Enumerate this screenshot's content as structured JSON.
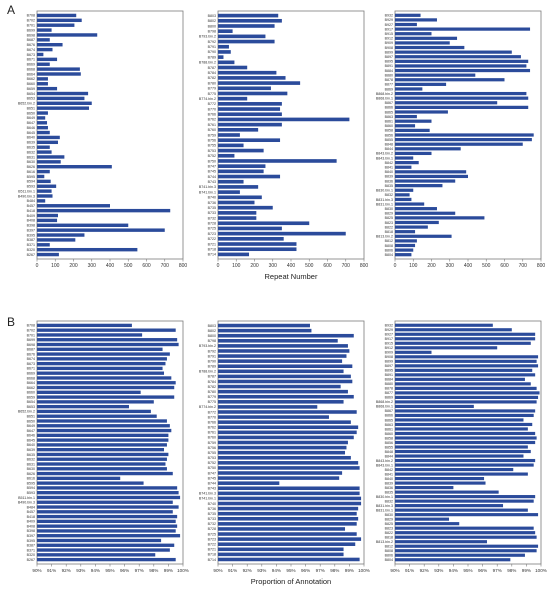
{
  "figure": {
    "panel_labels": [
      "A",
      "B"
    ],
    "bar_color": "#2b4b9b",
    "frame_color": "#7a7a7a"
  },
  "chart_data": [
    {
      "type": "bar",
      "orientation": "horizontal",
      "panel": "A",
      "column": 1,
      "xlabel": "",
      "xlim": [
        0,
        800
      ],
      "xticks": [
        0,
        100,
        200,
        300,
        400,
        500,
        600,
        700,
        800
      ],
      "categories": [
        "B708",
        "B702",
        "B701",
        "B699",
        "B698",
        "B687",
        "B676",
        "B674",
        "B673",
        "B671",
        "B669",
        "B668",
        "B664",
        "B662",
        "B660",
        "B659",
        "B654",
        "B653",
        "B652.bin.2",
        "B651",
        "B650",
        "B649",
        "B647",
        "B646",
        "B645",
        "B640",
        "B639",
        "B635",
        "B632",
        "B631",
        "B630",
        "B626",
        "B616",
        "B595",
        "B594",
        "B593",
        "B511.bin.1",
        "B490.bin.3",
        "B484",
        "B457",
        "B418",
        "B409",
        "B408",
        "B398",
        "B397",
        "B395",
        "B387",
        "B371",
        "B320",
        "B267"
      ],
      "values": [
        215,
        245,
        205,
        80,
        330,
        70,
        140,
        85,
        35,
        110,
        70,
        235,
        240,
        60,
        60,
        110,
        280,
        260,
        300,
        285,
        60,
        45,
        55,
        60,
        70,
        125,
        115,
        70,
        80,
        150,
        130,
        410,
        70,
        40,
        75,
        105,
        80,
        85,
        45,
        400,
        730,
        115,
        110,
        500,
        700,
        260,
        210,
        70,
        550,
        120
      ]
    },
    {
      "type": "bar",
      "orientation": "horizontal",
      "panel": "A",
      "column": 2,
      "xlabel": "Repeat Number",
      "xlim": [
        0,
        800
      ],
      "xticks": [
        0,
        100,
        200,
        300,
        400,
        500,
        600,
        700,
        800
      ],
      "categories": [
        "B803",
        "B802",
        "B800",
        "B798",
        "B793.bin.2",
        "B792",
        "B791",
        "B790",
        "B789",
        "B788.bin.2",
        "B787",
        "B784",
        "B782",
        "B780",
        "B779",
        "B775",
        "B774.bin.2",
        "B772",
        "B770",
        "B766",
        "B762",
        "B761",
        "B760",
        "B759",
        "B756",
        "B755",
        "B753",
        "B752",
        "B750",
        "B747",
        "B745",
        "B744",
        "B743",
        "B741.bin.3",
        "B741.bin.1",
        "B740",
        "B736",
        "B735",
        "B733",
        "B732",
        "B728",
        "B725",
        "B723",
        "B722",
        "B721",
        "B718",
        "B714"
      ],
      "values": [
        330,
        350,
        310,
        80,
        260,
        310,
        60,
        70,
        30,
        90,
        160,
        320,
        370,
        450,
        290,
        380,
        160,
        350,
        340,
        350,
        720,
        350,
        220,
        120,
        340,
        140,
        250,
        90,
        650,
        260,
        250,
        340,
        140,
        220,
        120,
        240,
        200,
        300,
        210,
        210,
        500,
        350,
        700,
        360,
        430,
        430,
        170
      ]
    },
    {
      "type": "bar",
      "orientation": "horizontal",
      "panel": "A",
      "column": 3,
      "xlabel": "",
      "xlim": [
        0,
        800
      ],
      "xticks": [
        0,
        100,
        200,
        300,
        400,
        500,
        600,
        700,
        800
      ],
      "categories": [
        "B932",
        "B929",
        "B927",
        "B917",
        "B915",
        "B912",
        "B909",
        "B908",
        "B899",
        "B897",
        "B895",
        "B891",
        "B884",
        "B880",
        "B878",
        "B877",
        "B869",
        "B868.bin.2",
        "B868.bin.1",
        "B867",
        "B866",
        "B865",
        "B863",
        "B861",
        "B860",
        "B858",
        "B856",
        "B855",
        "B848",
        "B844",
        "B843.bin.2",
        "B843.bin.1",
        "B842",
        "B841",
        "B840",
        "B839",
        "B836",
        "B835",
        "B830.bin.1",
        "B832",
        "B831.bin.3",
        "B831.bin.1",
        "B830",
        "B829",
        "B825",
        "B823",
        "B822",
        "B818",
        "B813.bin.2",
        "B812",
        "B808",
        "B806",
        "B804"
      ],
      "values": [
        140,
        230,
        120,
        740,
        200,
        340,
        300,
        380,
        640,
        690,
        730,
        720,
        740,
        440,
        600,
        280,
        150,
        720,
        730,
        560,
        730,
        290,
        120,
        200,
        110,
        190,
        760,
        750,
        700,
        360,
        200,
        100,
        130,
        90,
        390,
        400,
        330,
        260,
        100,
        80,
        90,
        160,
        230,
        330,
        490,
        240,
        180,
        110,
        310,
        120,
        110,
        100,
        90
      ]
    },
    {
      "type": "bar",
      "orientation": "horizontal",
      "panel": "B",
      "column": 1,
      "xlabel": "",
      "xlim": [
        90,
        100
      ],
      "xticks": [
        "90%",
        "91%",
        "92%",
        "93%",
        "94%",
        "95%",
        "96%",
        "97%",
        "98%",
        "99%",
        "100%"
      ],
      "categories": [
        "B708",
        "B702",
        "B701",
        "B699",
        "B698",
        "B687",
        "B676",
        "B674",
        "B673",
        "B671",
        "B669",
        "B668",
        "B664",
        "B662",
        "B660",
        "B659",
        "B654",
        "B653",
        "B652.bin.2",
        "B651",
        "B650",
        "B649",
        "B647",
        "B646",
        "B645",
        "B640",
        "B639",
        "B635",
        "B632",
        "B631",
        "B630",
        "B626",
        "B616",
        "B595",
        "B594",
        "B593",
        "B511.bin.1",
        "B490.bin.3",
        "B484",
        "B457",
        "B418",
        "B409",
        "B408",
        "B398",
        "B397",
        "B395",
        "B387",
        "B371",
        "B320",
        "B267"
      ],
      "values": [
        96.5,
        99.5,
        97.2,
        99.6,
        99.7,
        98.6,
        99.1,
        98.9,
        98.8,
        98.6,
        98.7,
        99.2,
        99.5,
        99.4,
        97.1,
        99.4,
        98.0,
        96.3,
        97.8,
        98.2,
        98.9,
        99.1,
        99.2,
        99.0,
        99.0,
        98.9,
        98.7,
        99.0,
        98.9,
        98.8,
        98.9,
        99.3,
        95.7,
        97.3,
        99.6,
        99.7,
        99.8,
        99.3,
        99.7,
        99.3,
        99.6,
        99.5,
        99.6,
        99.5,
        99.8,
        98.5,
        99.4,
        99.1,
        98.1,
        99.5
      ]
    },
    {
      "type": "bar",
      "orientation": "horizontal",
      "panel": "B",
      "column": 2,
      "xlabel": "Proportion of Annotation",
      "xlim": [
        90,
        100
      ],
      "xticks": [
        "90%",
        "91%",
        "92%",
        "93%",
        "94%",
        "95%",
        "96%",
        "97%",
        "98%",
        "99%",
        "100%"
      ],
      "categories": [
        "B803",
        "B802",
        "B800",
        "B798",
        "B793.bin.2",
        "B792",
        "B791",
        "B790",
        "B789",
        "B788.bin.2",
        "B787",
        "B784",
        "B782",
        "B780",
        "B779",
        "B775",
        "B774.bin.2",
        "B772",
        "B770",
        "B766",
        "B762",
        "B761",
        "B760",
        "B759",
        "B756",
        "B755",
        "B753",
        "B752",
        "B750",
        "B747",
        "B745",
        "B744",
        "B743",
        "B741.bin.3",
        "B741.bin.1",
        "B740",
        "B736",
        "B735",
        "B733",
        "B732",
        "B728",
        "B725",
        "B723",
        "B722",
        "B721",
        "B718",
        "B714"
      ],
      "values": [
        96.3,
        96.4,
        99.3,
        98.2,
        98.9,
        99.0,
        98.8,
        98.5,
        99.2,
        98.6,
        99.1,
        99.2,
        98.4,
        98.9,
        99.3,
        98.6,
        96.8,
        99.5,
        97.6,
        99.1,
        99.6,
        99.5,
        99.3,
        98.9,
        98.8,
        98.7,
        99.1,
        99.6,
        99.7,
        98.5,
        98.3,
        94.2,
        99.7,
        99.7,
        99.8,
        99.8,
        99.6,
        99.5,
        99.6,
        99.5,
        98.7,
        99.5,
        99.8,
        99.4,
        98.6,
        98.6,
        99.7
      ]
    },
    {
      "type": "bar",
      "orientation": "horizontal",
      "panel": "B",
      "column": 3,
      "xlabel": "",
      "xlim": [
        90,
        100
      ],
      "xticks": [
        "90%",
        "91%",
        "92%",
        "93%",
        "94%",
        "95%",
        "96%",
        "97%",
        "98%",
        "99%",
        "100%"
      ],
      "categories": [
        "B932",
        "B929",
        "B927",
        "B917",
        "B915",
        "B912",
        "B909",
        "B908",
        "B899",
        "B897",
        "B895",
        "B891",
        "B884",
        "B880",
        "B878",
        "B877",
        "B869",
        "B868.bin.2",
        "B868.bin.1",
        "B867",
        "B866",
        "B865",
        "B863",
        "B861",
        "B860",
        "B858",
        "B856",
        "B855",
        "B848",
        "B844",
        "B843.bin.2",
        "B843.bin.1",
        "B842",
        "B841",
        "B840",
        "B839",
        "B836",
        "B835",
        "B830.bin.1",
        "B832",
        "B831.bin.3",
        "B831.bin.1",
        "B830",
        "B829",
        "B825",
        "B823",
        "B822",
        "B818",
        "B813.bin.2",
        "B812",
        "B808",
        "B806",
        "B804"
      ],
      "values": [
        96.7,
        98.0,
        99.6,
        99.6,
        99.3,
        97.0,
        92.5,
        99.8,
        99.7,
        99.8,
        99.4,
        99.6,
        98.9,
        99.3,
        99.7,
        99.9,
        99.8,
        99.7,
        95.4,
        99.6,
        99.5,
        98.8,
        99.4,
        99.1,
        99.6,
        99.7,
        99.6,
        99.1,
        99.3,
        98.8,
        99.6,
        99.5,
        98.1,
        99.1,
        96.1,
        96.2,
        94.0,
        97.1,
        99.6,
        99.5,
        97.4,
        99.1,
        99.8,
        93.7,
        94.4,
        99.5,
        99.6,
        99.7,
        96.3,
        99.8,
        99.7,
        98.9,
        97.9
      ]
    }
  ]
}
